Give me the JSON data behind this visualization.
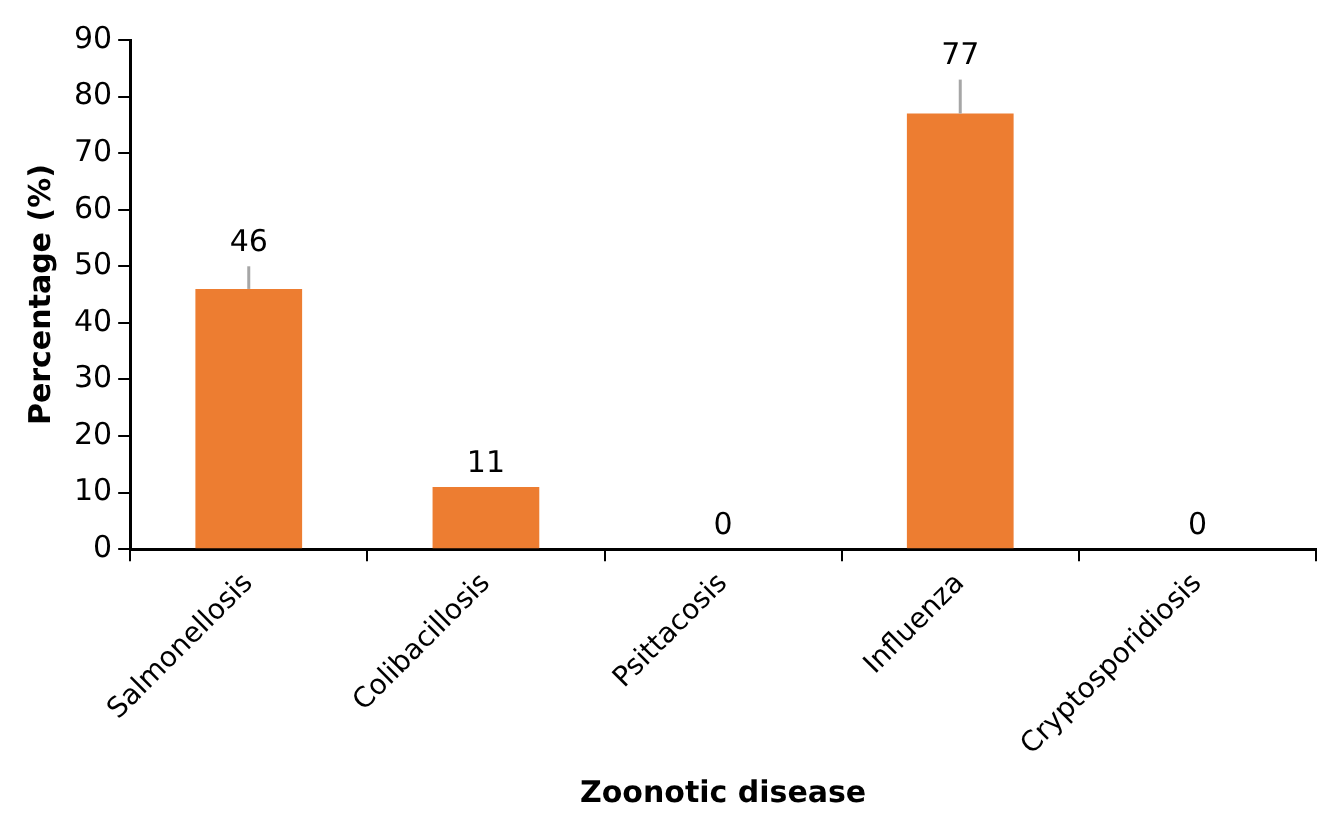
{
  "chart_data": {
    "type": "bar",
    "xlabel": "Zoonotic disease",
    "ylabel": "Percentage (%)",
    "categories": [
      "Salmonellosis",
      "Colibacillosis",
      "Psittacosis",
      "Influenza",
      "Cryptosporidiosis"
    ],
    "values": [
      46,
      11,
      0,
      77,
      0
    ],
    "errors": [
      [
        46,
        50
      ],
      null,
      null,
      [
        77,
        83
      ],
      null
    ],
    "color": "#ed7d31",
    "ylim": [
      0,
      90
    ],
    "yticks": [
      0,
      10,
      20,
      30,
      40,
      50,
      60,
      70,
      80,
      90
    ],
    "data_labels": true,
    "grid": false,
    "legend": false
  }
}
